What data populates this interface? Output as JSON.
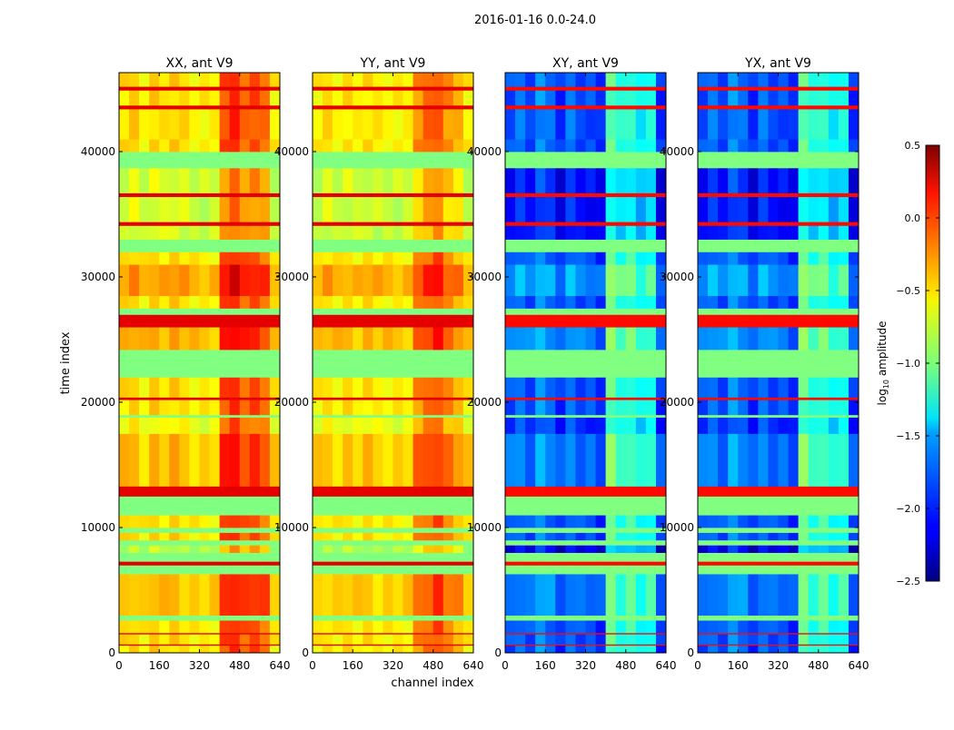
{
  "chart_data": {
    "type": "heatmap",
    "title": "2016-01-16 0.0-24.0",
    "xlabel": "channel index",
    "ylabel": "time index",
    "xlim": [
      0,
      640
    ],
    "ylim": [
      0,
      46300
    ],
    "xticks": [
      0,
      160,
      320,
      480,
      640
    ],
    "yticks": [
      0,
      10000,
      20000,
      30000,
      40000
    ],
    "colorbar": {
      "label_main": "log",
      "label_sub": "10",
      "label_rest": " amplitude",
      "range": [
        -2.5,
        0.5
      ],
      "ticks": [
        "-2.5",
        "-2.0",
        "-1.5",
        "-1.0",
        "-0.5",
        "0.0",
        "0.5"
      ],
      "colormap": "jet"
    },
    "channel_bin_width": 40,
    "panels": [
      {
        "title": "XX, ant V9",
        "rfi_value": 0.2,
        "flag_value": -1.0,
        "channel_profile": [
          -0.55,
          -0.5,
          -0.6,
          -0.5,
          -0.55,
          -0.5,
          -0.55,
          -0.6,
          -0.6,
          -0.6,
          -0.1,
          0.0,
          -0.15,
          -0.1,
          -0.2,
          -0.6
        ]
      },
      {
        "title": "YY, ant V9",
        "rfi_value": 0.2,
        "flag_value": -1.0,
        "channel_profile": [
          -0.6,
          -0.55,
          -0.6,
          -0.55,
          -0.6,
          -0.55,
          -0.6,
          -0.6,
          -0.6,
          -0.6,
          -0.3,
          -0.2,
          -0.1,
          -0.3,
          -0.4,
          -0.6
        ]
      },
      {
        "title": "XY, ant V9",
        "rfi_value": 0.1,
        "flag_value": -1.0,
        "channel_profile": [
          -1.9,
          -1.8,
          -1.9,
          -1.7,
          -1.8,
          -2.0,
          -1.8,
          -1.9,
          -1.9,
          -2.0,
          -1.1,
          -1.3,
          -1.2,
          -1.4,
          -1.3,
          -2.0
        ]
      },
      {
        "title": "YX, ant V9",
        "rfi_value": 0.1,
        "flag_value": -1.0,
        "channel_profile": [
          -1.9,
          -1.8,
          -1.9,
          -1.7,
          -1.8,
          -2.0,
          -1.8,
          -1.9,
          -1.9,
          -2.0,
          -1.1,
          -1.3,
          -1.2,
          -1.4,
          -1.3,
          -2.0
        ]
      }
    ],
    "time_bands": [
      [
        0,
        600,
        "normal",
        0
      ],
      [
        600,
        700,
        "rfi",
        0
      ],
      [
        700,
        1500,
        "normal",
        0
      ],
      [
        1500,
        1600,
        "rfi",
        0
      ],
      [
        1600,
        2600,
        "normal",
        0
      ],
      [
        2600,
        3000,
        "flag",
        0
      ],
      [
        3000,
        6300,
        "normal",
        0.1
      ],
      [
        6300,
        7000,
        "flag",
        0
      ],
      [
        7000,
        7300,
        "rfi",
        0
      ],
      [
        7300,
        8000,
        "flag",
        0
      ],
      [
        8000,
        8600,
        "normal",
        -0.3
      ],
      [
        8600,
        9000,
        "flag",
        0
      ],
      [
        9000,
        9600,
        "normal",
        0
      ],
      [
        9600,
        10000,
        "flag",
        0
      ],
      [
        10000,
        11000,
        "normal",
        0
      ],
      [
        11000,
        12500,
        "flag",
        0
      ],
      [
        12500,
        13300,
        "rfi",
        0
      ],
      [
        13300,
        17500,
        "normal",
        0.1
      ],
      [
        17500,
        18800,
        "normal",
        -0.1
      ],
      [
        18800,
        19000,
        "flag",
        0
      ],
      [
        19000,
        20200,
        "normal",
        0
      ],
      [
        20200,
        20400,
        "rfi",
        0
      ],
      [
        20400,
        22000,
        "normal",
        0
      ],
      [
        22000,
        24200,
        "flag",
        0
      ],
      [
        24200,
        26000,
        "normal",
        0.15
      ],
      [
        26000,
        27000,
        "rfi",
        0
      ],
      [
        27000,
        27500,
        "flag",
        0
      ],
      [
        27500,
        28500,
        "normal",
        0
      ],
      [
        28500,
        31000,
        "normal",
        0.2
      ],
      [
        31000,
        32000,
        "normal",
        0
      ],
      [
        32000,
        33000,
        "flag",
        0
      ],
      [
        33000,
        34100,
        "normal",
        -0.2
      ],
      [
        34100,
        34400,
        "rfi",
        0
      ],
      [
        34400,
        36400,
        "normal",
        -0.2
      ],
      [
        36400,
        36700,
        "rfi",
        0
      ],
      [
        36700,
        38700,
        "normal",
        -0.2
      ],
      [
        38700,
        40000,
        "flag",
        0
      ],
      [
        40000,
        41000,
        "normal",
        0
      ],
      [
        41000,
        43400,
        "normal",
        0
      ],
      [
        43400,
        43700,
        "rfi",
        0
      ],
      [
        43700,
        44900,
        "normal",
        0
      ],
      [
        44900,
        45200,
        "rfi",
        0
      ],
      [
        45200,
        46300,
        "normal",
        0
      ]
    ]
  }
}
